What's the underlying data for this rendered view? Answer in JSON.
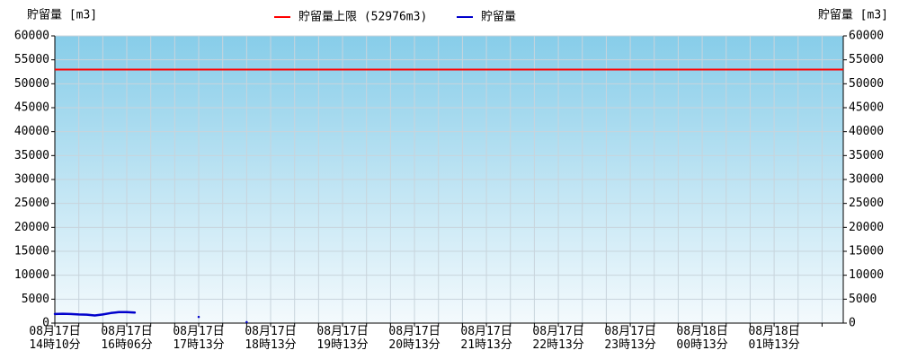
{
  "chart_data": {
    "type": "line",
    "ylabel": "貯留量 [m3]",
    "y2label": "貯留量 [m3]",
    "ylim": [
      0,
      60000
    ],
    "yticks": [
      0,
      5000,
      10000,
      15000,
      20000,
      25000,
      30000,
      35000,
      40000,
      45000,
      50000,
      55000,
      60000
    ],
    "y2lim": [
      0,
      60000
    ],
    "y2ticks": [
      0,
      5000,
      10000,
      15000,
      20000,
      25000,
      30000,
      35000,
      40000,
      45000,
      50000,
      55000,
      60000
    ],
    "grid": true,
    "limit": {
      "name": "貯留量上限 (52976m3)",
      "color": "#ff0000",
      "value": 52976
    },
    "categories": [
      "08月17日\n14時10分",
      null,
      null,
      null,
      null,
      null,
      null,
      null,
      null,
      "08月17日\n16時06分",
      null,
      null,
      null,
      null,
      null,
      null,
      null,
      null,
      "08月17日\n17時13分",
      null,
      null,
      null,
      null,
      null,
      null,
      null,
      null,
      "08月17日\n18時13分",
      null,
      null,
      null,
      null,
      null,
      null,
      null,
      null,
      "08月17日\n19時13分",
      null,
      null,
      null,
      null,
      null,
      null,
      null,
      null,
      "08月17日\n20時13分",
      null,
      null,
      null,
      null,
      null,
      null,
      null,
      null,
      "08月17日\n21時13分",
      null,
      null,
      null,
      null,
      null,
      null,
      null,
      null,
      "08月17日\n22時13分",
      null,
      null,
      null,
      null,
      null,
      null,
      null,
      null,
      "08月17日\n23時13分",
      null,
      null,
      null,
      null,
      null,
      null,
      null,
      null,
      "08月18日\n00時13分",
      null,
      null,
      null,
      null,
      null,
      null,
      null,
      null,
      "08月18日\n01時13分",
      null,
      null,
      null,
      null,
      null,
      null,
      null,
      null
    ],
    "series": [
      {
        "name": "貯留量",
        "color": "#0000cc",
        "values": [
          1900,
          1950,
          1900,
          1800,
          1750,
          1600,
          1800,
          2100,
          2300,
          2300,
          2200,
          null,
          null,
          null,
          null,
          null,
          null,
          null,
          1300,
          null,
          null,
          null,
          null,
          null,
          200,
          null,
          null,
          null,
          null,
          null,
          null,
          null,
          null,
          null,
          null,
          null,
          null,
          null,
          null,
          null,
          null,
          null,
          null,
          null,
          null,
          null,
          null,
          null,
          null,
          null,
          null,
          null,
          null,
          null,
          null,
          null,
          null,
          null,
          null,
          null,
          null,
          null,
          null,
          null,
          null,
          null,
          null,
          null,
          null,
          null,
          null,
          null,
          null,
          null,
          null,
          null,
          null,
          null,
          null,
          null,
          null,
          null,
          null,
          null,
          null,
          null,
          null,
          null,
          null,
          null,
          null,
          null,
          null,
          null,
          null,
          null,
          null,
          null,
          null
        ]
      }
    ]
  }
}
